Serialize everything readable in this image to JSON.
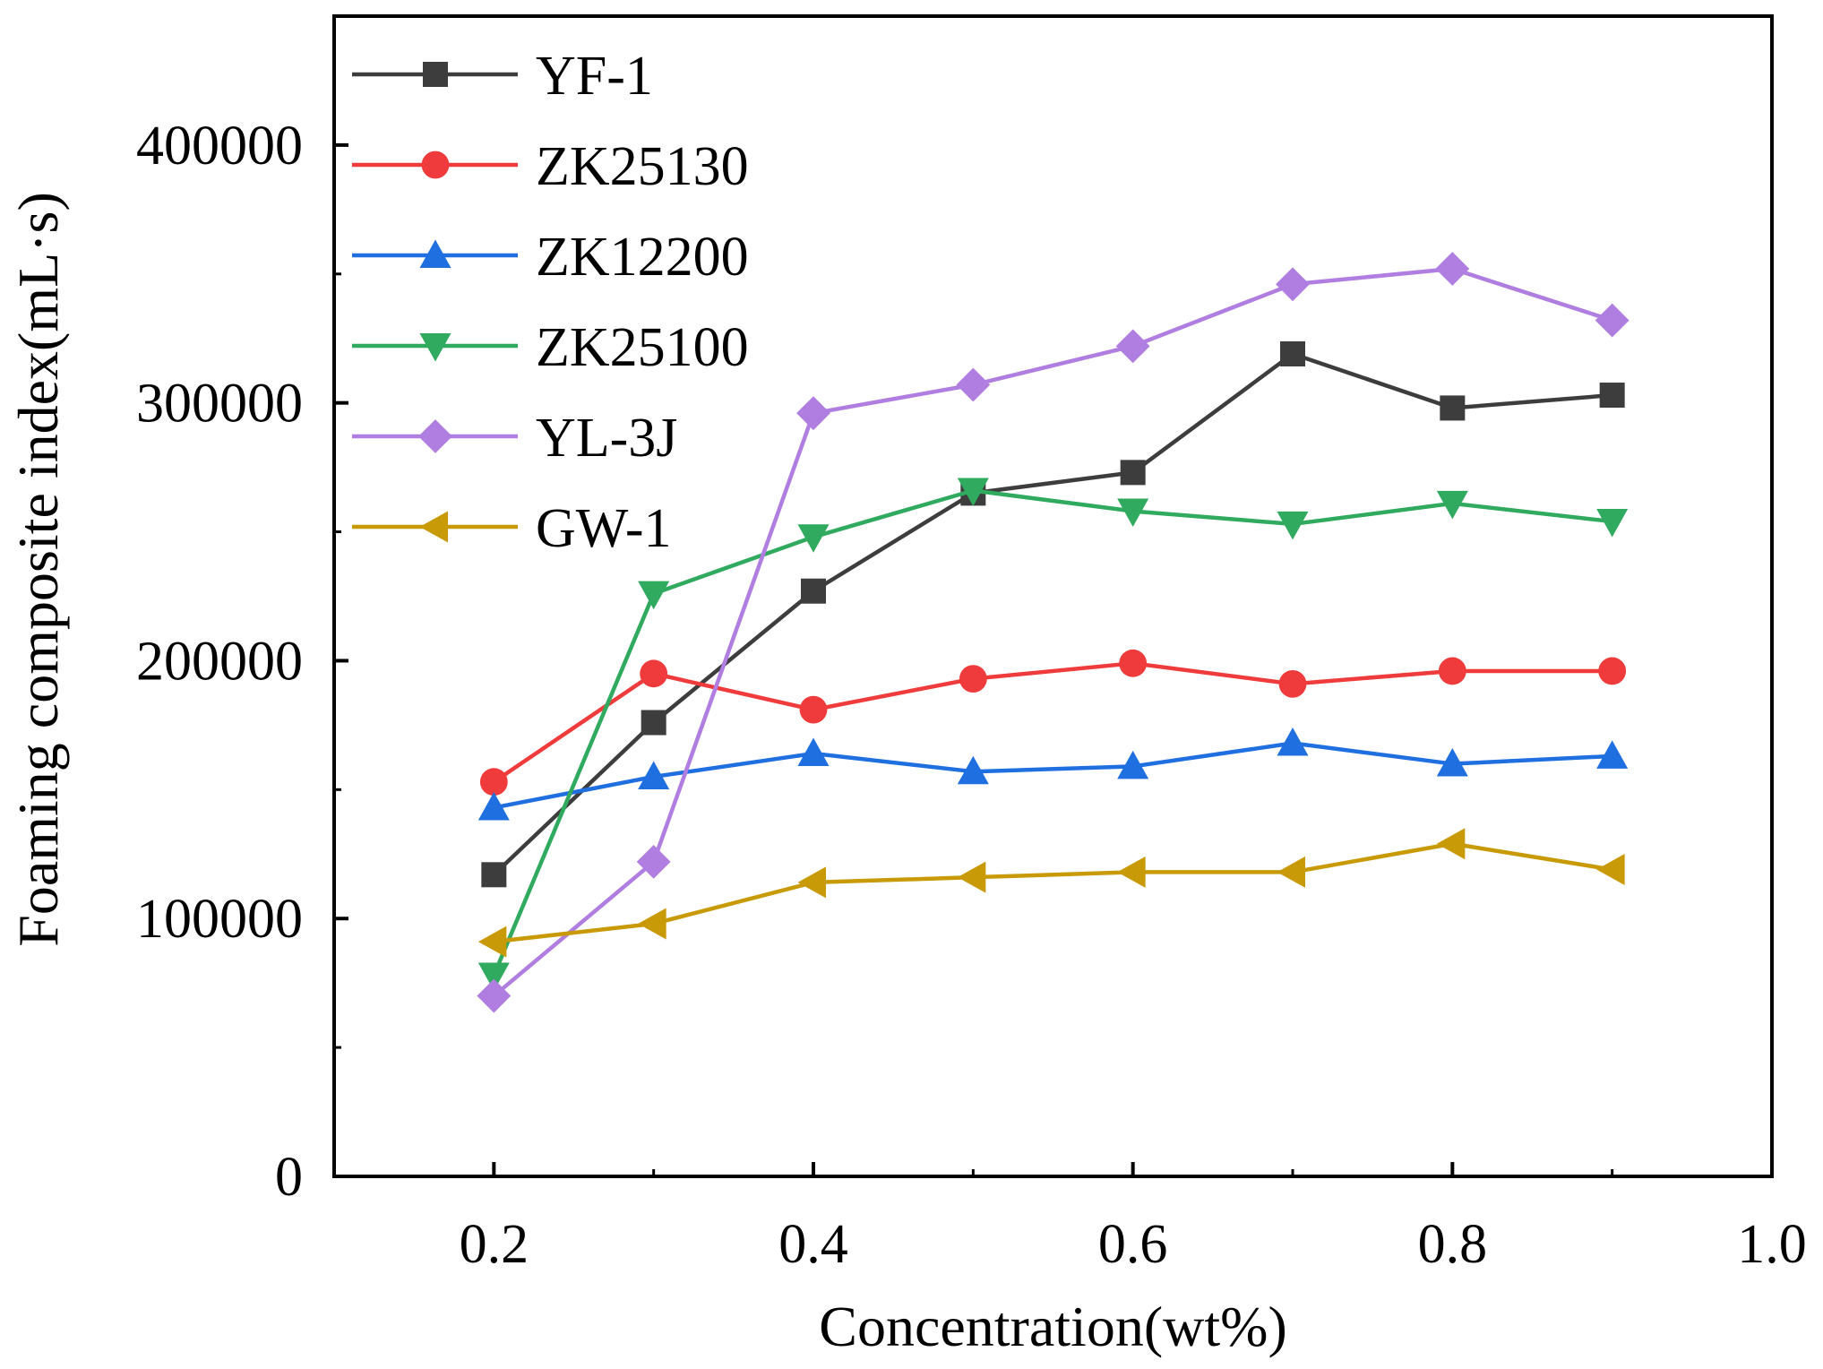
{
  "chart_data": {
    "type": "line",
    "title": "",
    "xlabel": "Concentration(wt%)",
    "ylabel": "Foaming composite index(mL·s)",
    "xlim": [
      0.1,
      1.0
    ],
    "ylim": [
      0,
      450000
    ],
    "x_ticks": [
      0.2,
      0.4,
      0.6,
      0.8,
      1.0
    ],
    "x_tick_labels": [
      "0.2",
      "0.4",
      "0.6",
      "0.8",
      "1.0"
    ],
    "y_ticks": [
      0,
      100000,
      200000,
      300000,
      400000
    ],
    "y_tick_labels": [
      "0",
      "100000",
      "200000",
      "300000",
      "400000"
    ],
    "legend_position": "top-left",
    "x": [
      0.2,
      0.3,
      0.4,
      0.5,
      0.6,
      0.7,
      0.8,
      0.9
    ],
    "series": [
      {
        "name": "YF-1",
        "color": "#3d3d3d",
        "marker": "square",
        "values": [
          117000,
          176000,
          227000,
          265000,
          273000,
          319000,
          298000,
          303000
        ]
      },
      {
        "name": "ZK25130",
        "color": "#ef3b3b",
        "marker": "circle",
        "values": [
          153000,
          195000,
          181000,
          193000,
          199000,
          191000,
          196000,
          196000
        ]
      },
      {
        "name": "ZK12200",
        "color": "#1f6fe0",
        "marker": "triangle-up",
        "values": [
          143000,
          155000,
          164000,
          157000,
          159000,
          168000,
          160000,
          163000
        ]
      },
      {
        "name": "ZK25100",
        "color": "#2faa5e",
        "marker": "triangle-down",
        "values": [
          78000,
          226000,
          248000,
          266000,
          258000,
          253000,
          261000,
          254000
        ]
      },
      {
        "name": "YL-3J",
        "color": "#b07ee0",
        "marker": "diamond",
        "values": [
          70000,
          122000,
          296000,
          307000,
          322000,
          346000,
          352000,
          332000
        ]
      },
      {
        "name": "GW-1",
        "color": "#c99a08",
        "marker": "triangle-left",
        "values": [
          91000,
          98000,
          114000,
          116000,
          118000,
          118000,
          129000,
          119000
        ]
      }
    ]
  }
}
